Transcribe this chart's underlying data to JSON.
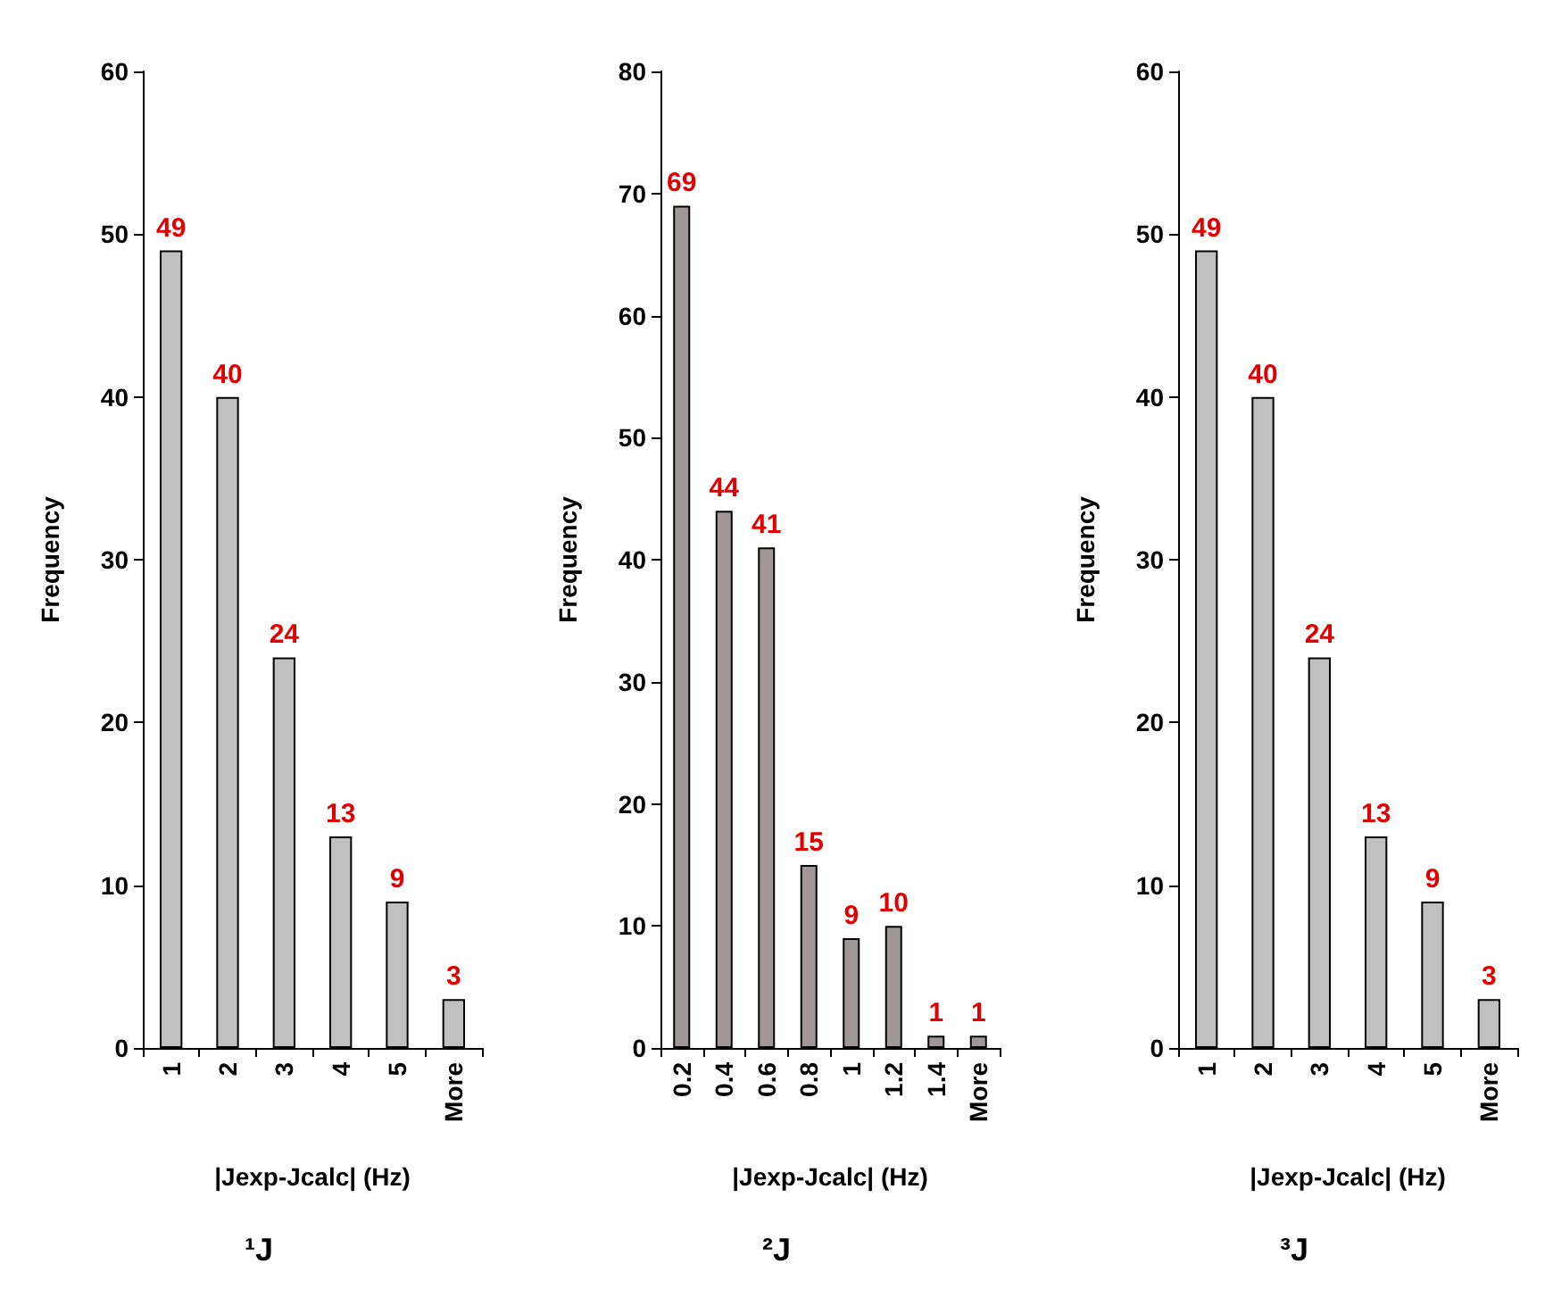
{
  "chart_data": [
    {
      "type": "bar",
      "title": "¹J",
      "xlabel": "|Jexp-Jcalc| (Hz)",
      "ylabel": "Frequency",
      "categories": [
        "1",
        "2",
        "3",
        "4",
        "5",
        "More"
      ],
      "series": [
        {
          "color": "#c0c0c0",
          "values": [
            49,
            40,
            24,
            13,
            9,
            3
          ]
        }
      ],
      "ylim": [
        0,
        60
      ],
      "yticks": [
        0,
        10,
        20,
        30,
        40,
        50,
        60
      ],
      "data_labels": true
    },
    {
      "type": "bar",
      "title": "²J",
      "xlabel": "|Jexp-Jcalc| (Hz)",
      "ylabel": "Frequency",
      "categories": [
        "0.2",
        "0.4",
        "0.6",
        "0.8",
        "1",
        "1.2",
        "1.4",
        "More"
      ],
      "series": [
        {
          "color": "#a09898",
          "values": [
            69,
            44,
            41,
            15,
            9,
            10,
            1,
            1
          ]
        }
      ],
      "ylim": [
        0,
        80
      ],
      "yticks": [
        0,
        10,
        20,
        30,
        40,
        50,
        60,
        70,
        80
      ],
      "data_labels": true
    },
    {
      "type": "bar",
      "title": "³J",
      "xlabel": "|Jexp-Jcalc| (Hz)",
      "ylabel": "Frequency",
      "categories": [
        "1",
        "2",
        "3",
        "4",
        "5",
        "More"
      ],
      "series": [
        {
          "color": "#c0c0c0",
          "values": [
            49,
            40,
            24,
            13,
            9,
            3
          ]
        }
      ],
      "ylim": [
        0,
        60
      ],
      "yticks": [
        0,
        10,
        20,
        30,
        40,
        50,
        60
      ],
      "data_labels": true
    }
  ]
}
